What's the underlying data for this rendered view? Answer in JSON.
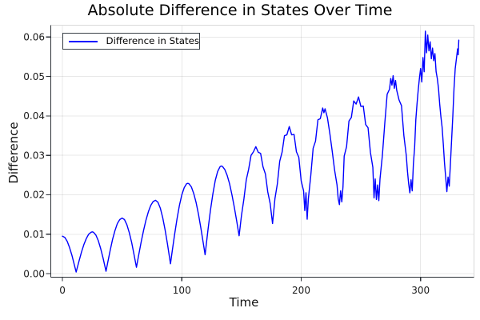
{
  "title": "Absolute Difference in States Over Time",
  "axes": {
    "xlabel": "Time",
    "ylabel": "Difference"
  },
  "legend": {
    "label": "Difference in States"
  },
  "chart_data": {
    "type": "line",
    "title": "Absolute Difference in States Over Time",
    "xlabel": "Time",
    "ylabel": "Difference",
    "grid": true,
    "legend_position": "top-left",
    "xlim": [
      -9.4,
      344.4
    ],
    "ylim": [
      -0.0008,
      0.0629
    ],
    "xticks": [
      0,
      100,
      200,
      300
    ],
    "xtick_labels": [
      "0",
      "100",
      "200",
      "300"
    ],
    "yticks": [
      0,
      0.01,
      0.02,
      0.03,
      0.04,
      0.05,
      0.06
    ],
    "ytick_labels": [
      "0.00",
      "0.01",
      "0.02",
      "0.03",
      "0.04",
      "0.05",
      "0.06"
    ],
    "colors": {
      "series": "#0000ff",
      "grid": "rgba(0,0,0,0.09)",
      "spine_dark": "#2d3238",
      "spine_light": "#d9d9d9",
      "tick_text": "#1a1a1a"
    },
    "series": [
      {
        "name": "Difference in States",
        "color": "#0000ff",
        "points": [
          [
            0,
            0.0095
          ],
          [
            2,
            0.0092
          ],
          [
            4,
            0.0082
          ],
          [
            6,
            0.0066
          ],
          [
            8,
            0.0046
          ],
          [
            10,
            0.0022
          ],
          [
            11.5,
            0.0004
          ],
          [
            12,
            0.001
          ],
          [
            14,
            0.0033
          ],
          [
            16,
            0.0055
          ],
          [
            18,
            0.0074
          ],
          [
            20,
            0.0089
          ],
          [
            22,
            0.01
          ],
          [
            24,
            0.0105
          ],
          [
            25,
            0.0106
          ],
          [
            26,
            0.0105
          ],
          [
            28,
            0.0098
          ],
          [
            30,
            0.0084
          ],
          [
            32,
            0.0064
          ],
          [
            34,
            0.004
          ],
          [
            36,
            0.0013
          ],
          [
            36.5,
            0.0006
          ],
          [
            38,
            0.0029
          ],
          [
            40,
            0.0059
          ],
          [
            42,
            0.0087
          ],
          [
            44,
            0.0109
          ],
          [
            46,
            0.0127
          ],
          [
            48,
            0.0137
          ],
          [
            50,
            0.0141
          ],
          [
            52,
            0.0137
          ],
          [
            54,
            0.0124
          ],
          [
            56,
            0.0104
          ],
          [
            58,
            0.0079
          ],
          [
            60,
            0.0048
          ],
          [
            62,
            0.0016
          ],
          [
            64,
            0.0049
          ],
          [
            66,
            0.0081
          ],
          [
            68,
            0.011
          ],
          [
            70,
            0.0136
          ],
          [
            72,
            0.0157
          ],
          [
            74,
            0.0173
          ],
          [
            76,
            0.0183
          ],
          [
            78,
            0.0186
          ],
          [
            80,
            0.0181
          ],
          [
            82,
            0.0166
          ],
          [
            84,
            0.0142
          ],
          [
            86,
            0.0111
          ],
          [
            88,
            0.0075
          ],
          [
            90,
            0.0035
          ],
          [
            90.5,
            0.0025
          ],
          [
            92,
            0.0058
          ],
          [
            94,
            0.01
          ],
          [
            96,
            0.0139
          ],
          [
            98,
            0.0173
          ],
          [
            100,
            0.02
          ],
          [
            102,
            0.0218
          ],
          [
            104,
            0.0228
          ],
          [
            105,
            0.0229
          ],
          [
            106,
            0.0228
          ],
          [
            108,
            0.022
          ],
          [
            110,
            0.0203
          ],
          [
            112,
            0.018
          ],
          [
            114,
            0.015
          ],
          [
            116,
            0.0115
          ],
          [
            118,
            0.0077
          ],
          [
            119.5,
            0.0048
          ],
          [
            120,
            0.0061
          ],
          [
            122,
            0.0113
          ],
          [
            124,
            0.0161
          ],
          [
            126,
            0.0202
          ],
          [
            128,
            0.0236
          ],
          [
            130,
            0.0259
          ],
          [
            132,
            0.0271
          ],
          [
            133,
            0.0273
          ],
          [
            134,
            0.0272
          ],
          [
            136,
            0.0264
          ],
          [
            138,
            0.0249
          ],
          [
            140,
            0.0228
          ],
          [
            142,
            0.02
          ],
          [
            144,
            0.0168
          ],
          [
            146,
            0.0133
          ],
          [
            148,
            0.0096
          ],
          [
            150,
            0.0148
          ],
          [
            152,
            0.0189
          ],
          [
            154,
            0.0238
          ],
          [
            156,
            0.0265
          ],
          [
            158,
            0.03
          ],
          [
            160,
            0.0309
          ],
          [
            162,
            0.0322
          ],
          [
            164,
            0.0308
          ],
          [
            166,
            0.0305
          ],
          [
            168,
            0.0271
          ],
          [
            170,
            0.0253
          ],
          [
            172,
            0.0207
          ],
          [
            174,
            0.0178
          ],
          [
            176,
            0.0127
          ],
          [
            178,
            0.019
          ],
          [
            180,
            0.0227
          ],
          [
            182,
            0.0285
          ],
          [
            184,
            0.0308
          ],
          [
            186,
            0.035
          ],
          [
            188,
            0.0352
          ],
          [
            190,
            0.0373
          ],
          [
            192,
            0.0352
          ],
          [
            194,
            0.0353
          ],
          [
            196,
            0.0309
          ],
          [
            198,
            0.0295
          ],
          [
            200,
            0.0235
          ],
          [
            202,
            0.021
          ],
          [
            203,
            0.016
          ],
          [
            204,
            0.0205
          ],
          [
            205,
            0.0138
          ],
          [
            206,
            0.019
          ],
          [
            208,
            0.0248
          ],
          [
            210,
            0.0318
          ],
          [
            212,
            0.0336
          ],
          [
            214,
            0.039
          ],
          [
            216,
            0.0393
          ],
          [
            218,
            0.042
          ],
          [
            219,
            0.0408
          ],
          [
            220,
            0.0418
          ],
          [
            222,
            0.0395
          ],
          [
            224,
            0.0355
          ],
          [
            226,
            0.031
          ],
          [
            228,
            0.0262
          ],
          [
            230,
            0.0225
          ],
          [
            231,
            0.019
          ],
          [
            232,
            0.0175
          ],
          [
            233,
            0.021
          ],
          [
            234,
            0.0182
          ],
          [
            235,
            0.022
          ],
          [
            236,
            0.0298
          ],
          [
            238,
            0.0322
          ],
          [
            240,
            0.0387
          ],
          [
            242,
            0.0396
          ],
          [
            244,
            0.0438
          ],
          [
            246,
            0.043
          ],
          [
            248,
            0.0448
          ],
          [
            250,
            0.0424
          ],
          [
            252,
            0.0425
          ],
          [
            254,
            0.0378
          ],
          [
            256,
            0.037
          ],
          [
            258,
            0.0307
          ],
          [
            260,
            0.027
          ],
          [
            261,
            0.0192
          ],
          [
            262,
            0.024
          ],
          [
            263,
            0.0188
          ],
          [
            264,
            0.0225
          ],
          [
            265,
            0.0185
          ],
          [
            266,
            0.024
          ],
          [
            268,
            0.03
          ],
          [
            270,
            0.0381
          ],
          [
            272,
            0.0455
          ],
          [
            274,
            0.0468
          ],
          [
            275,
            0.0495
          ],
          [
            276,
            0.0478
          ],
          [
            277,
            0.0502
          ],
          [
            278,
            0.047
          ],
          [
            279,
            0.049
          ],
          [
            280,
            0.0465
          ],
          [
            282,
            0.044
          ],
          [
            284,
            0.0426
          ],
          [
            286,
            0.035
          ],
          [
            288,
            0.03
          ],
          [
            289,
            0.026
          ],
          [
            290,
            0.0228
          ],
          [
            291,
            0.0205
          ],
          [
            292,
            0.0238
          ],
          [
            293,
            0.021
          ],
          [
            294,
            0.028
          ],
          [
            295,
            0.032
          ],
          [
            296,
            0.039
          ],
          [
            297,
            0.043
          ],
          [
            298,
            0.0465
          ],
          [
            299,
            0.0495
          ],
          [
            300,
            0.052
          ],
          [
            301,
            0.0486
          ],
          [
            302,
            0.0548
          ],
          [
            303,
            0.0512
          ],
          [
            304,
            0.0615
          ],
          [
            305,
            0.056
          ],
          [
            306,
            0.0605
          ],
          [
            307,
            0.0565
          ],
          [
            308,
            0.0588
          ],
          [
            309,
            0.0545
          ],
          [
            310,
            0.0572
          ],
          [
            311,
            0.054
          ],
          [
            312,
            0.0558
          ],
          [
            313,
            0.0512
          ],
          [
            314,
            0.0495
          ],
          [
            315,
            0.047
          ],
          [
            316,
            0.043
          ],
          [
            317,
            0.0398
          ],
          [
            318,
            0.0372
          ],
          [
            319,
            0.033
          ],
          [
            320,
            0.0282
          ],
          [
            321,
            0.0245
          ],
          [
            322,
            0.0208
          ],
          [
            323,
            0.0245
          ],
          [
            324,
            0.0222
          ],
          [
            325,
            0.028
          ],
          [
            326,
            0.034
          ],
          [
            327,
            0.04
          ],
          [
            328,
            0.047
          ],
          [
            329,
            0.052
          ],
          [
            330,
            0.0545
          ],
          [
            331,
            0.057
          ],
          [
            331.5,
            0.0555
          ],
          [
            332,
            0.0592
          ]
        ]
      }
    ]
  }
}
